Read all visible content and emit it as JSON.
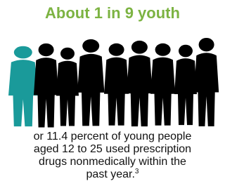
{
  "title": "About 1 in 9 youth",
  "body": {
    "lines": [
      "or 11.4 percent of young people",
      "aged 12 to 25 used prescription",
      "drugs nonmedically within the",
      "past year."
    ],
    "footnote": "3"
  }
}
